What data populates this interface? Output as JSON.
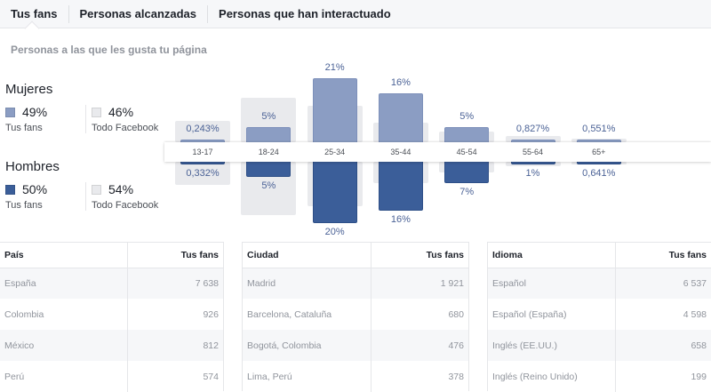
{
  "tabs": [
    {
      "label": "Tus fans",
      "active": true
    },
    {
      "label": "Personas alcanzadas",
      "active": false
    },
    {
      "label": "Personas que han interactuado",
      "active": false
    }
  ],
  "subtitle": "Personas a las que les gusta tu página",
  "legend": {
    "women": {
      "title": "Mujeres",
      "fans_value": "49%",
      "fans_label": "Tus fans",
      "fb_value": "46%",
      "fb_label": "Todo Facebook"
    },
    "men": {
      "title": "Hombres",
      "fans_value": "50%",
      "fans_label": "Tus fans",
      "fb_value": "54%",
      "fb_label": "Todo Facebook"
    }
  },
  "colors": {
    "women": "#8b9dc3",
    "men": "#3b5e99",
    "facebook": "#e9eaed"
  },
  "chart_data": {
    "type": "bar",
    "categories": [
      "13-17",
      "18-24",
      "25-34",
      "35-44",
      "45-54",
      "55-64",
      "65+"
    ],
    "series": [
      {
        "name": "Mujeres - Tus fans",
        "values": [
          0.243,
          5,
          21,
          16,
          5,
          0.827,
          0.551
        ],
        "labels": [
          "0,243%",
          "5%",
          "21%",
          "16%",
          "5%",
          "0,827%",
          "0,551%"
        ]
      },
      {
        "name": "Hombres - Tus fans",
        "values": [
          0.332,
          5,
          20,
          16,
          7,
          1,
          0.641
        ],
        "labels": [
          "0,332%",
          "5%",
          "20%",
          "16%",
          "7%",
          "1%",
          "0,641%"
        ]
      },
      {
        "name": "Mujeres - Todo Facebook",
        "values": [
          7,
          14.5,
          12,
          6.5,
          3.5,
          2,
          1.3
        ]
      },
      {
        "name": "Hombres - Todo Facebook",
        "values": [
          7.5,
          17.5,
          14.5,
          7,
          3.5,
          1.5,
          1
        ]
      }
    ]
  },
  "tables": [
    {
      "headers": [
        "País",
        "Tus fans"
      ],
      "rows": [
        [
          "España",
          "7 638"
        ],
        [
          "Colombia",
          "926"
        ],
        [
          "México",
          "812"
        ],
        [
          "Perú",
          "574"
        ]
      ]
    },
    {
      "headers": [
        "Ciudad",
        "Tus fans"
      ],
      "rows": [
        [
          "Madrid",
          "1 921"
        ],
        [
          "Barcelona, Cataluña",
          "680"
        ],
        [
          "Bogotá, Colombia",
          "476"
        ],
        [
          "Lima, Perú",
          "378"
        ]
      ]
    },
    {
      "headers": [
        "Idioma",
        "Tus fans"
      ],
      "rows": [
        [
          "Español",
          "6 537"
        ],
        [
          "Español (España)",
          "4 598"
        ],
        [
          "Inglés (EE.UU.)",
          "658"
        ],
        [
          "Inglés (Reino Unido)",
          "199"
        ]
      ]
    }
  ]
}
